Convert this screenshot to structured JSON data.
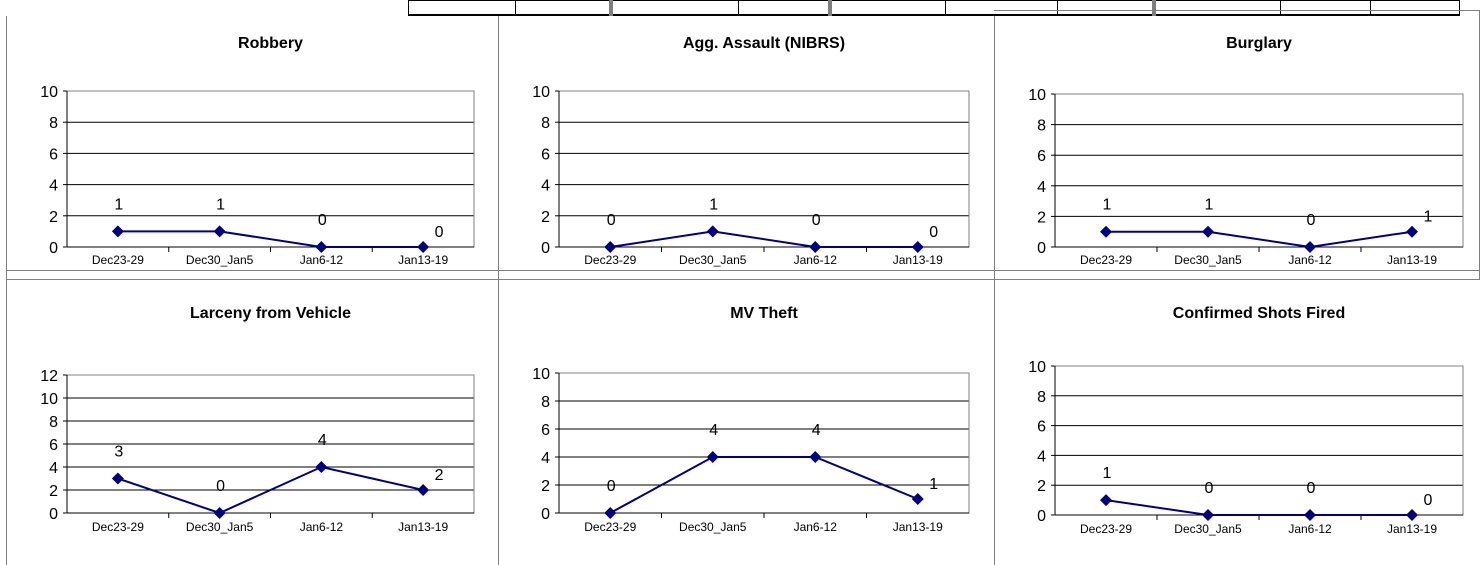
{
  "charts": {
    "chart_data": [
      {
        "type": "line",
        "title": "Robbery",
        "categories": [
          "Dec23-29",
          "Dec30_Jan5",
          "Jan6-12",
          "Jan13-19"
        ],
        "values": [
          1,
          1,
          0,
          0
        ],
        "ylim": [
          0,
          10
        ],
        "yticks": [
          0,
          2,
          4,
          6,
          8,
          10
        ],
        "grid": true,
        "legend": false,
        "color": "#000080"
      },
      {
        "type": "line",
        "title": "Agg. Assault (NIBRS)",
        "categories": [
          "Dec23-29",
          "Dec30_Jan5",
          "Jan6-12",
          "Jan13-19"
        ],
        "values": [
          0,
          1,
          0,
          0
        ],
        "ylim": [
          0,
          10
        ],
        "yticks": [
          0,
          2,
          4,
          6,
          8,
          10
        ],
        "grid": true,
        "legend": false,
        "color": "#000080"
      },
      {
        "type": "line",
        "title": "Burglary",
        "categories": [
          "Dec23-29",
          "Dec30_Jan5",
          "Jan6-12",
          "Jan13-19"
        ],
        "values": [
          1,
          1,
          0,
          1
        ],
        "ylim": [
          0,
          10
        ],
        "yticks": [
          0,
          2,
          4,
          6,
          8,
          10
        ],
        "grid": true,
        "legend": false,
        "color": "#000080"
      },
      {
        "type": "line",
        "title": "Larceny from Vehicle",
        "categories": [
          "Dec23-29",
          "Dec30_Jan5",
          "Jan6-12",
          "Jan13-19"
        ],
        "values": [
          3,
          0,
          4,
          2
        ],
        "ylim": [
          0,
          12
        ],
        "yticks": [
          0,
          2,
          4,
          6,
          8,
          10,
          12
        ],
        "grid": true,
        "legend": false,
        "color": "#000080"
      },
      {
        "type": "line",
        "title": "MV Theft",
        "categories": [
          "Dec23-29",
          "Dec30_Jan5",
          "Jan6-12",
          "Jan13-19"
        ],
        "values": [
          0,
          4,
          4,
          1
        ],
        "ylim": [
          0,
          10
        ],
        "yticks": [
          0,
          2,
          4,
          6,
          8,
          10
        ],
        "grid": true,
        "legend": false,
        "color": "#000080"
      },
      {
        "type": "line",
        "title": "Confirmed Shots Fired",
        "categories": [
          "Dec23-29",
          "Dec30_Jan5",
          "Jan6-12",
          "Jan13-19"
        ],
        "values": [
          1,
          0,
          0,
          0
        ],
        "ylim": [
          0,
          10
        ],
        "yticks": [
          0,
          2,
          4,
          6,
          8,
          10
        ],
        "grid": true,
        "legend": false,
        "color": "#000080"
      }
    ]
  }
}
